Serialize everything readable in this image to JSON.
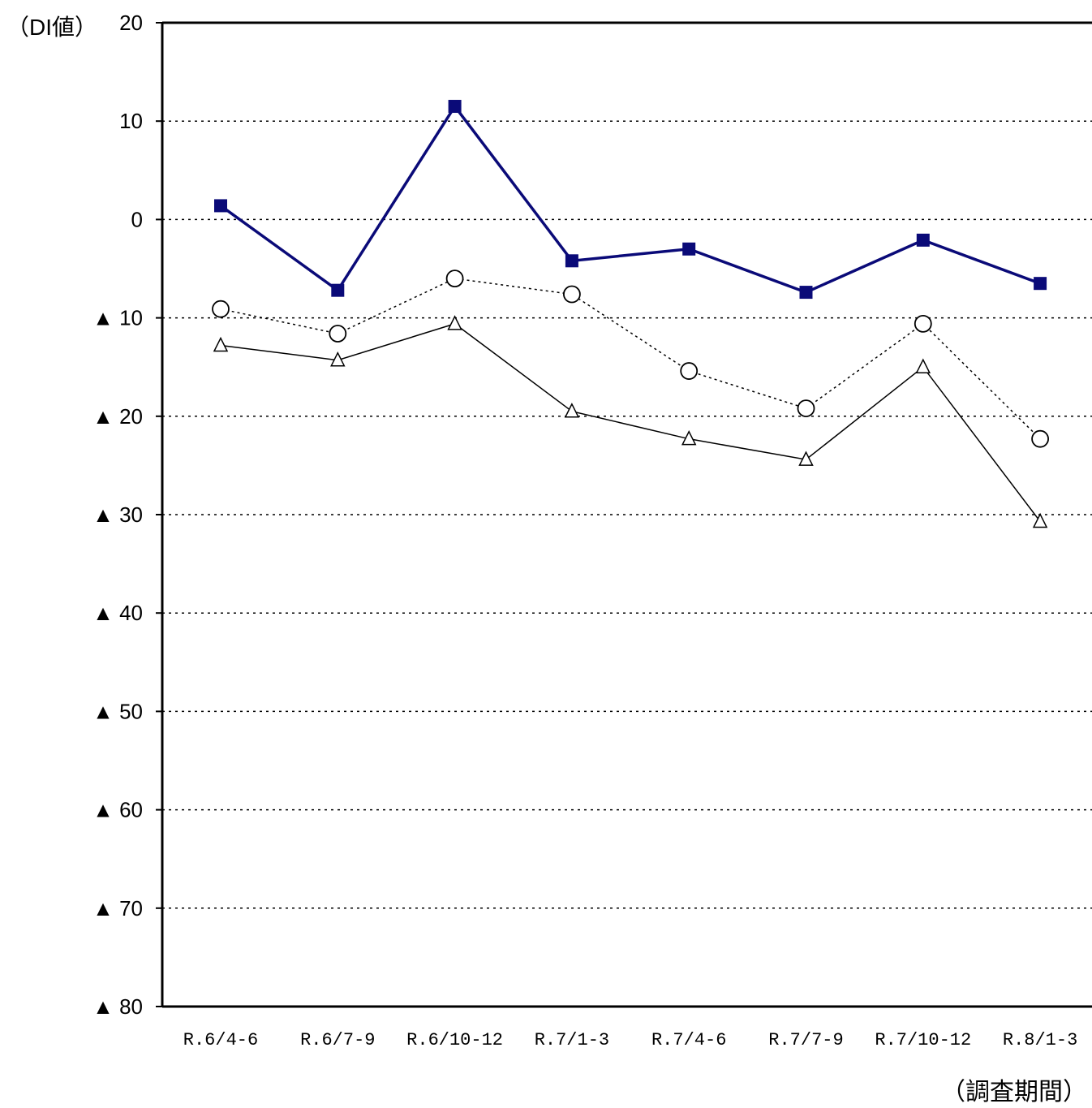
{
  "chart_data": {
    "type": "line",
    "title": "",
    "ylabel": "（DI値）",
    "xlabel": "（調査期間）",
    "ylim": [
      -80,
      20
    ],
    "yticks": [
      20,
      10,
      0,
      -10,
      -20,
      -30,
      -40,
      -50,
      -60,
      -70,
      -80
    ],
    "ytick_labels": [
      "20",
      "10",
      "0",
      "▲ 10",
      "▲ 20",
      "▲ 30",
      "▲ 40",
      "▲ 50",
      "▲ 60",
      "▲ 70",
      "▲ 80"
    ],
    "categories": [
      "R.6/4-6",
      "R.6/7-9",
      "R.6/10-12",
      "R.7/1-3",
      "R.7/4-6",
      "R.7/7-9",
      "R.7/10-12",
      "R.8/1-3"
    ],
    "grid": true,
    "series": [
      {
        "marker": "filled-square",
        "line": "solid-thick",
        "color": "#0a0a78",
        "values": [
          1.4,
          -7.2,
          11.5,
          -4.2,
          -3.0,
          -7.4,
          -2.1,
          -6.5
        ]
      },
      {
        "marker": "open-circle",
        "line": "dotted",
        "color": "#000000",
        "values": [
          -9.1,
          -11.6,
          -6.0,
          -7.6,
          -15.4,
          -19.2,
          -10.6,
          -22.3
        ]
      },
      {
        "marker": "open-triangle",
        "line": "solid-thin",
        "color": "#000000",
        "values": [
          -12.8,
          -14.3,
          -10.6,
          -19.5,
          -22.3,
          -24.4,
          -15.0,
          -30.7
        ]
      }
    ]
  }
}
